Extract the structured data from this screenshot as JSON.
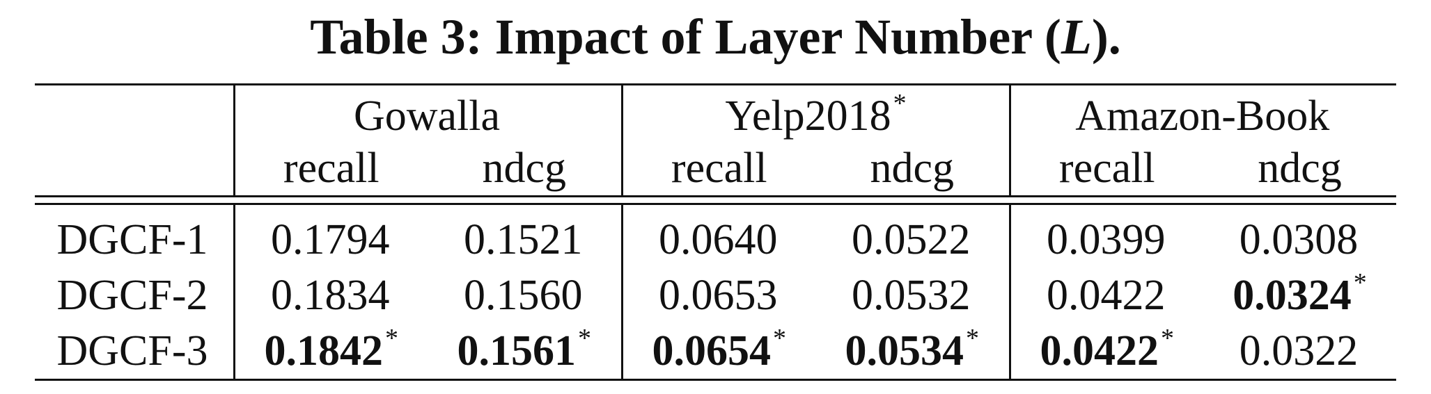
{
  "caption": {
    "prefix": "Table 3: Impact of Layer Number (",
    "variable": "L",
    "suffix": ")."
  },
  "columns": {
    "datasets": [
      {
        "name": "Gowalla",
        "marker": ""
      },
      {
        "name": "Yelp2018",
        "marker": "*"
      },
      {
        "name": "Amazon-Book",
        "marker": ""
      }
    ],
    "metrics": [
      "recall",
      "ndcg",
      "recall",
      "ndcg",
      "recall",
      "ndcg"
    ]
  },
  "rows": [
    {
      "label": "DGCF-1",
      "values": [
        "0.1794",
        "0.1521",
        "0.0640",
        "0.0522",
        "0.0399",
        "0.0308"
      ],
      "best": [
        false,
        false,
        false,
        false,
        false,
        false
      ],
      "marks": [
        "",
        "",
        "",
        "",
        "",
        ""
      ]
    },
    {
      "label": "DGCF-2",
      "values": [
        "0.1834",
        "0.1560",
        "0.0653",
        "0.0532",
        "0.0422",
        "0.0324"
      ],
      "best": [
        false,
        false,
        false,
        false,
        false,
        true
      ],
      "marks": [
        "",
        "",
        "",
        "",
        "",
        "*"
      ]
    },
    {
      "label": "DGCF-3",
      "values": [
        "0.1842",
        "0.1561",
        "0.0654",
        "0.0534",
        "0.0422",
        "0.0322"
      ],
      "best": [
        true,
        true,
        true,
        true,
        true,
        false
      ],
      "marks": [
        "*",
        "*",
        "*",
        "*",
        "*",
        ""
      ]
    }
  ]
}
